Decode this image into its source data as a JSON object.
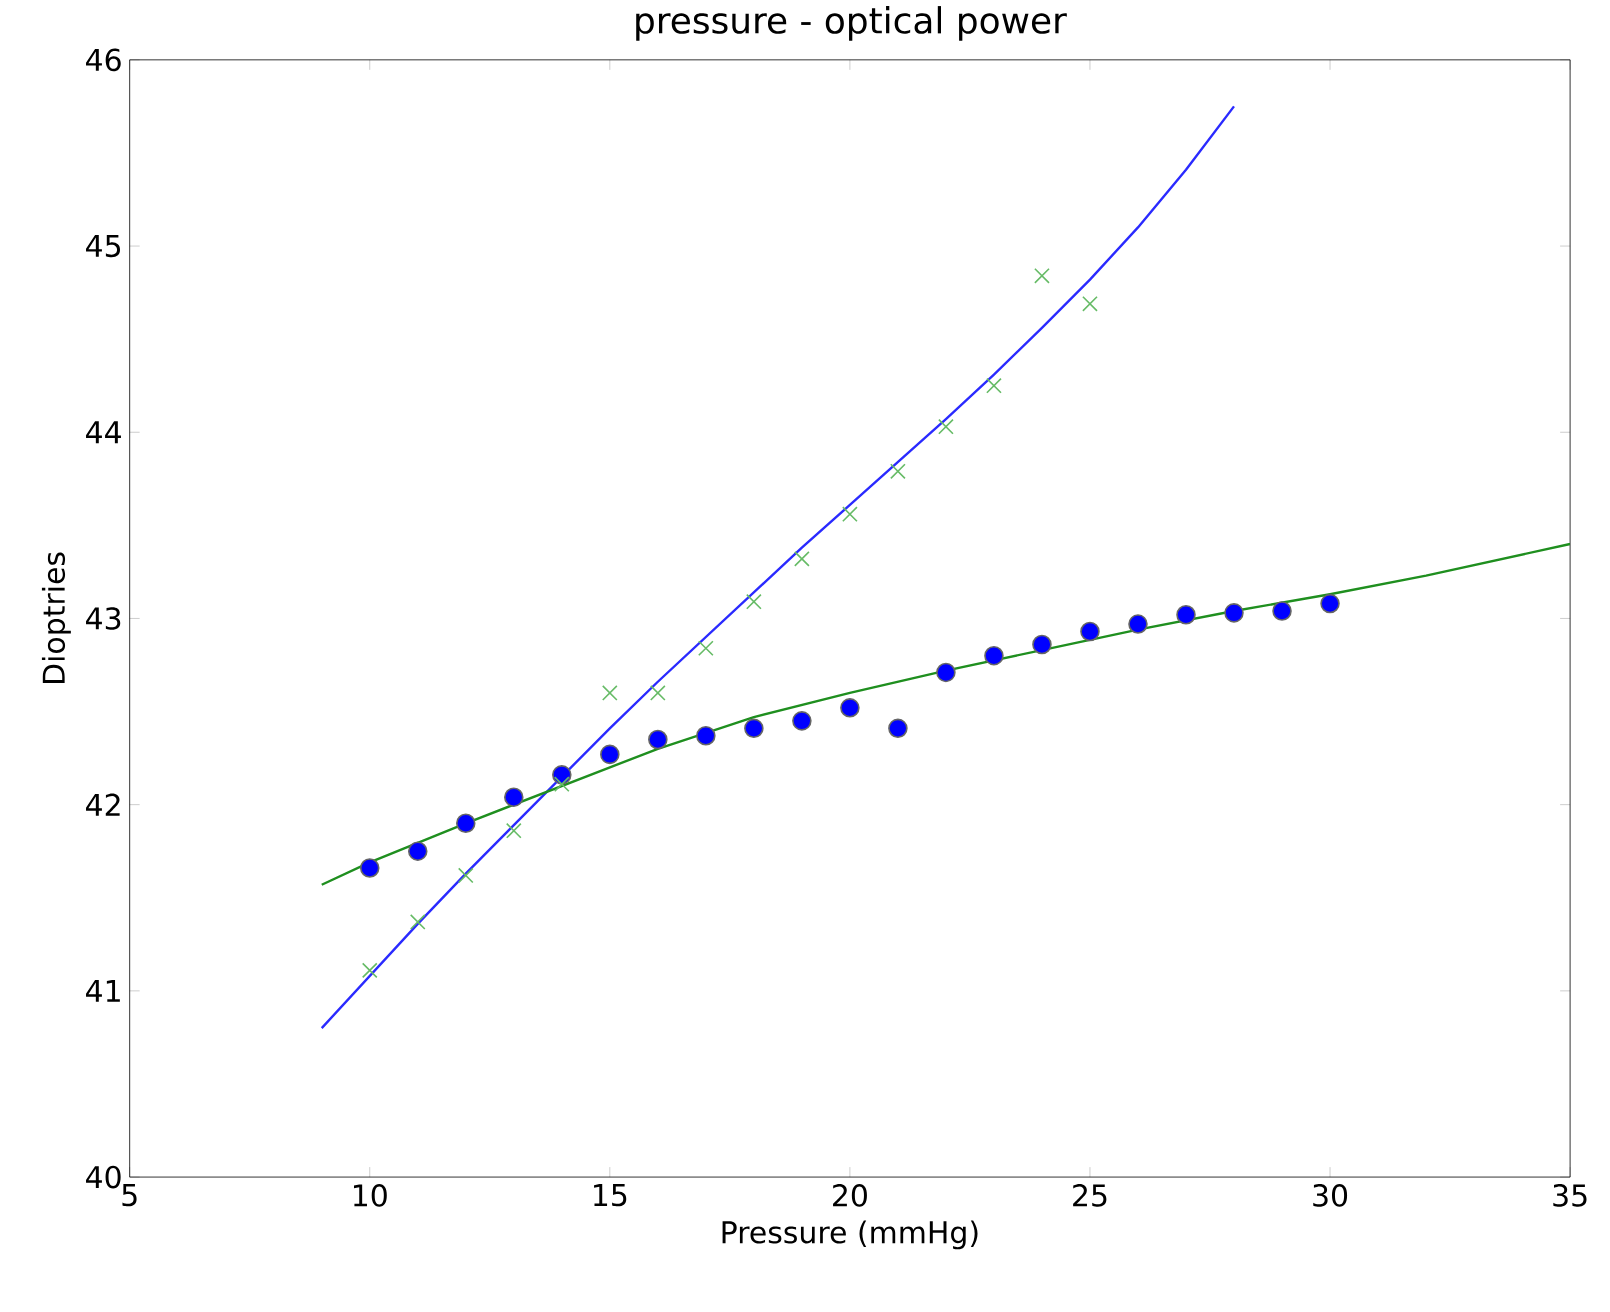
{
  "chart_data": {
    "type": "scatter",
    "title": "pressure - optical power",
    "xlabel": "Pressure (mmHg)",
    "ylabel": "Dioptries",
    "xlim": [
      5,
      35
    ],
    "xticks": [
      5,
      10,
      15,
      20,
      25,
      30,
      35
    ],
    "ylim": [
      40,
      46
    ],
    "yticks": [
      40,
      41,
      42,
      43,
      44,
      45,
      46
    ],
    "series": [
      {
        "marker": "circle",
        "color": "#0000ff",
        "x": [
          10,
          11,
          12,
          13,
          14,
          15,
          16,
          17,
          18,
          19,
          20,
          21,
          22,
          23,
          24,
          25,
          26,
          27,
          28,
          29,
          30
        ],
        "values": [
          41.66,
          41.75,
          41.9,
          42.04,
          42.16,
          42.27,
          42.35,
          42.37,
          42.41,
          42.45,
          42.52,
          42.41,
          42.71,
          42.8,
          42.86,
          42.93,
          42.97,
          43.02,
          43.03,
          43.04,
          43.08
        ]
      },
      {
        "marker": "cross",
        "color": "#66bb66",
        "x": [
          10,
          11,
          12,
          13,
          14,
          15,
          16,
          17,
          18,
          19,
          20,
          21,
          22,
          23,
          24,
          25
        ],
        "values": [
          41.11,
          41.37,
          41.62,
          41.86,
          42.11,
          42.6,
          42.6,
          42.84,
          43.09,
          43.32,
          43.56,
          43.79,
          44.03,
          44.25,
          44.84,
          44.69
        ]
      },
      {
        "type": "line",
        "marker": "none",
        "color": "#2a2aff",
        "x": [
          9,
          10,
          11,
          12,
          13,
          14,
          15,
          16,
          17,
          18,
          19,
          20,
          21,
          22,
          23,
          24,
          25,
          26,
          27,
          28
        ],
        "values": [
          40.8,
          41.08,
          41.36,
          41.63,
          41.89,
          42.15,
          42.41,
          42.66,
          42.9,
          43.14,
          43.38,
          43.61,
          43.84,
          44.07,
          44.31,
          44.56,
          44.82,
          45.1,
          45.41,
          45.75
        ]
      },
      {
        "type": "line",
        "marker": "none",
        "color": "#1f8f1f",
        "x": [
          9,
          10,
          12,
          14,
          16,
          18,
          20,
          22,
          24,
          26,
          28,
          30,
          32,
          35
        ],
        "values": [
          41.57,
          41.69,
          41.9,
          42.1,
          42.3,
          42.47,
          42.6,
          42.72,
          42.83,
          42.94,
          43.04,
          43.13,
          43.23,
          43.4
        ]
      }
    ]
  }
}
